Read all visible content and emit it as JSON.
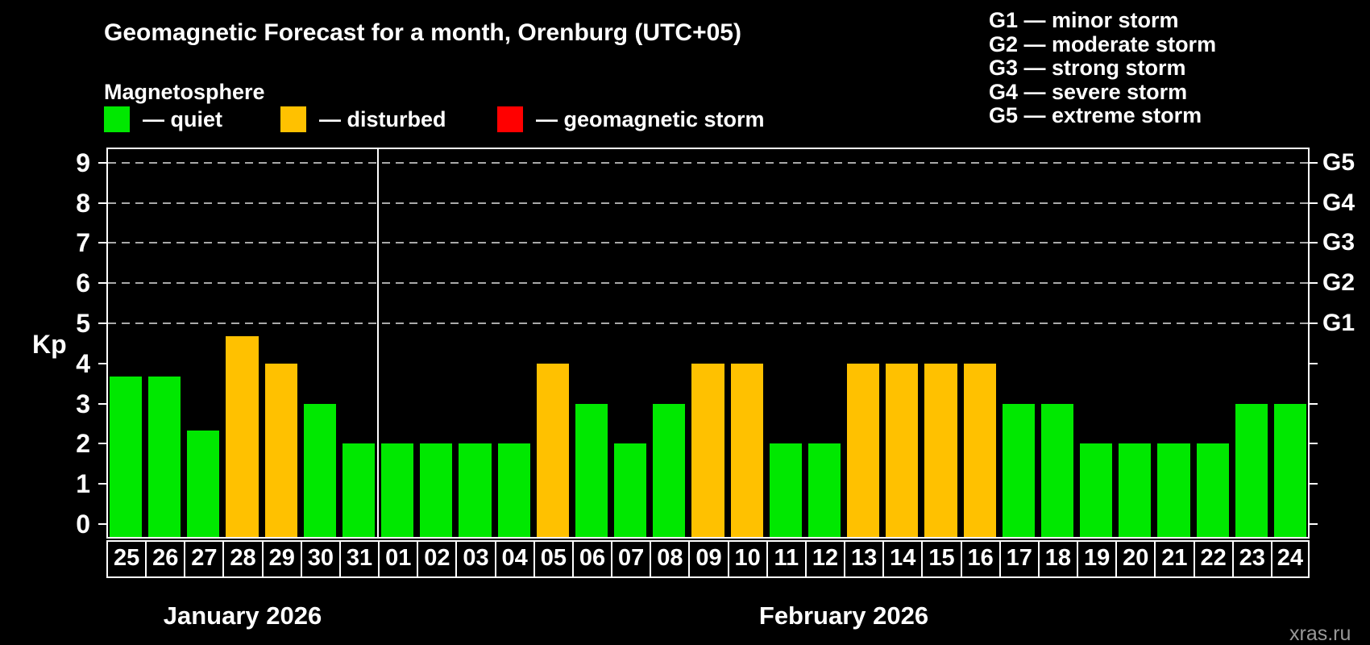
{
  "title": "Geomagnetic Forecast for a month, Orenburg (UTC+05)",
  "subtitle": "Magnetosphere",
  "legend": {
    "items": [
      {
        "state": "quiet",
        "label": "— quiet",
        "color": "#00e800"
      },
      {
        "state": "disturbed",
        "label": "— disturbed",
        "color": "#ffc100"
      },
      {
        "state": "storm",
        "label": "— geomagnetic storm",
        "color": "#ff0000"
      }
    ]
  },
  "g_scale_legend": [
    "G1 — minor storm",
    "G2 — moderate storm",
    "G3 — strong storm",
    "G4 — severe storm",
    "G5 — extreme storm"
  ],
  "watermark": "xras.ru",
  "chart_data": {
    "type": "bar",
    "title": "Geomagnetic Forecast for a month, Orenburg (UTC+05)",
    "ylabel": "Kp",
    "ylim": [
      0,
      9.4
    ],
    "yticks": [
      0,
      1,
      2,
      3,
      4,
      5,
      6,
      7,
      8,
      9
    ],
    "gridlines_at": [
      5,
      6,
      7,
      8,
      9
    ],
    "grid": "horizontal dashed gray lines only at G-storm levels (Kp 5-9)",
    "legend_position": "top",
    "right_axis_labels": [
      {
        "value": 5,
        "label": "G1"
      },
      {
        "value": 6,
        "label": "G2"
      },
      {
        "value": 7,
        "label": "G3"
      },
      {
        "value": 8,
        "label": "G4"
      },
      {
        "value": 9,
        "label": "G5"
      }
    ],
    "colors": {
      "quiet": "#00e800",
      "disturbed": "#ffc100",
      "storm": "#ff0000"
    },
    "groups": [
      {
        "month": "January 2026",
        "days": [
          "25",
          "26",
          "27",
          "28",
          "29",
          "30",
          "31"
        ],
        "values": [
          3.67,
          3.67,
          2.33,
          4.67,
          4,
          3,
          2
        ],
        "states": [
          "quiet",
          "quiet",
          "quiet",
          "disturbed",
          "disturbed",
          "quiet",
          "quiet"
        ]
      },
      {
        "month": "February 2026",
        "days": [
          "01",
          "02",
          "03",
          "04",
          "05",
          "06",
          "07",
          "08",
          "09",
          "10",
          "11",
          "12",
          "13",
          "14",
          "15",
          "16",
          "17",
          "18",
          "19",
          "20",
          "21",
          "22",
          "23",
          "24"
        ],
        "values": [
          2,
          2,
          2,
          2,
          4,
          3,
          2,
          3,
          4,
          4,
          2,
          2,
          4,
          4,
          4,
          4,
          3,
          3,
          2,
          2,
          2,
          2,
          3,
          3
        ],
        "states": [
          "quiet",
          "quiet",
          "quiet",
          "quiet",
          "disturbed",
          "quiet",
          "quiet",
          "quiet",
          "disturbed",
          "disturbed",
          "quiet",
          "quiet",
          "disturbed",
          "disturbed",
          "disturbed",
          "disturbed",
          "quiet",
          "quiet",
          "quiet",
          "quiet",
          "quiet",
          "quiet",
          "quiet",
          "quiet"
        ]
      }
    ]
  }
}
